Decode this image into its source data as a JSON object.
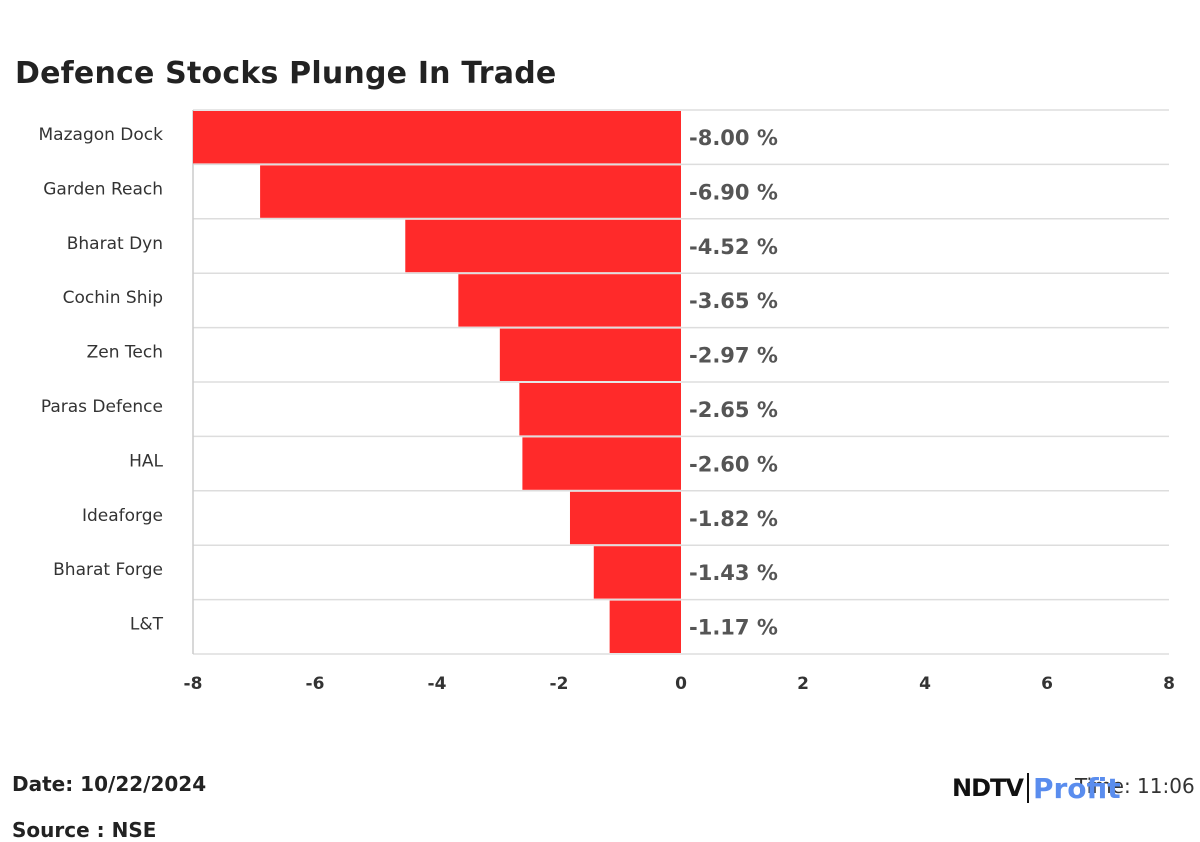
{
  "chart_data": {
    "type": "bar",
    "orientation": "horizontal",
    "title": "Defence Stocks Plunge In Trade",
    "categories": [
      "Mazagon Dock",
      "Garden Reach",
      "Bharat Dyn",
      "Cochin Ship",
      "Zen Tech",
      "Paras Defence",
      "HAL",
      "Ideaforge",
      "Bharat Forge",
      "L&T"
    ],
    "values": [
      -8.0,
      -6.9,
      -4.52,
      -3.65,
      -2.97,
      -2.65,
      -2.6,
      -1.82,
      -1.43,
      -1.17
    ],
    "value_labels": [
      "-8.00 %",
      "-6.90 %",
      "-4.52 %",
      "-3.65 %",
      "-2.97 %",
      "-2.65 %",
      "-2.60 %",
      "-1.82 %",
      "-1.43 %",
      "-1.17 %"
    ],
    "xlim": [
      -8,
      8
    ],
    "xticks": [
      "-8",
      "-6",
      "-4",
      "-2",
      "0",
      "2",
      "4",
      "6",
      "8"
    ],
    "bar_color": "#ff2a2a",
    "grid": true
  },
  "footer": {
    "date": "Date: 10/22/2024",
    "source": "Source : NSE",
    "time": "Time: 11:06",
    "logo_ndtv": "NDTV",
    "logo_profit": "Profit"
  }
}
